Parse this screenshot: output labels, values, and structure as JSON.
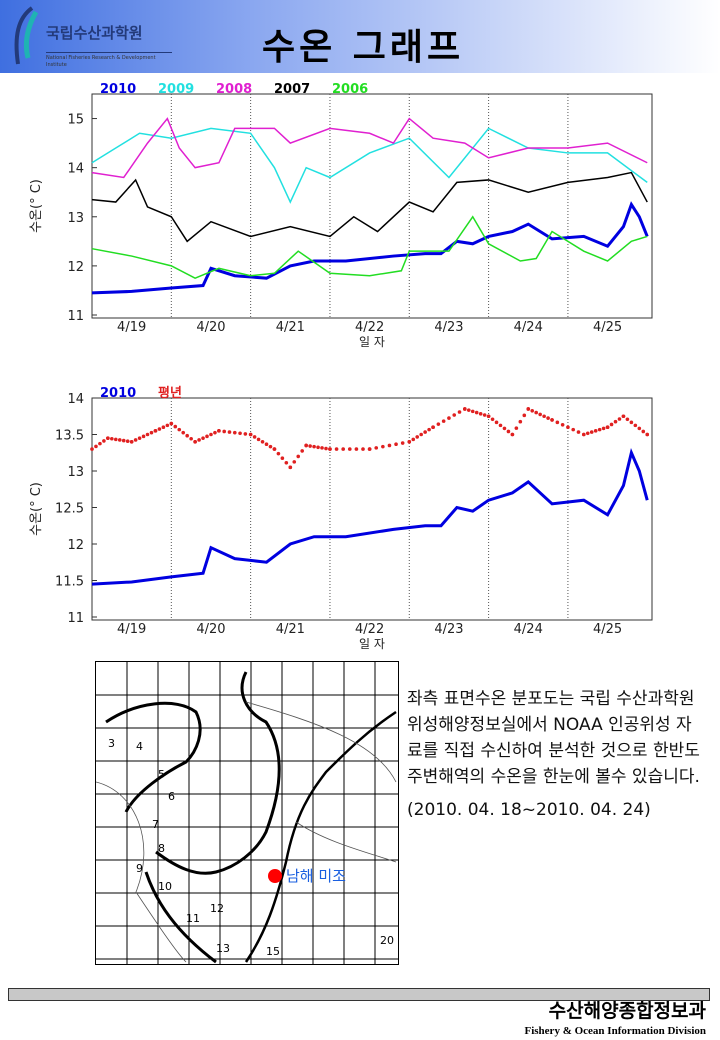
{
  "header": {
    "logo_kr": "국립수산과학원",
    "logo_en": "National Fisheries Research & Development Institute",
    "title": "수온 그래프"
  },
  "chart_data": [
    {
      "type": "line",
      "xlabel": "일 자",
      "ylabel": "수온(° C)",
      "ylim": [
        11,
        15.5
      ],
      "yticks": [
        "11",
        "12",
        "13",
        "14",
        "15"
      ],
      "ytick_values": [
        11,
        12,
        13,
        14,
        15
      ],
      "categories": [
        "4/19",
        "4/20",
        "4/21",
        "4/22",
        "4/23",
        "4/24",
        "4/25"
      ],
      "xlim": [
        0,
        7.06
      ],
      "x_unit": "days since 4/19 00:00",
      "series": [
        {
          "name": "2010",
          "color": "#0000e0",
          "x": [
            0,
            0.5,
            1,
            1.4,
            1.5,
            1.8,
            2.2,
            2.5,
            2.8,
            3.2,
            3.8,
            4.2,
            4.4,
            4.6,
            4.8,
            5,
            5.3,
            5.5,
            5.8,
            6.2,
            6.5,
            6.7,
            6.8,
            6.9,
            7
          ],
          "y": [
            11.45,
            11.48,
            11.55,
            11.6,
            11.95,
            11.8,
            11.75,
            12,
            12.1,
            12.1,
            12.2,
            12.25,
            12.25,
            12.5,
            12.45,
            12.6,
            12.7,
            12.85,
            12.55,
            12.6,
            12.4,
            12.8,
            13.25,
            13,
            12.6
          ]
        },
        {
          "name": "2009",
          "color": "#22e0e0",
          "x": [
            0,
            0.3,
            0.6,
            1,
            1.5,
            2,
            2.3,
            2.5,
            2.7,
            3,
            3.5,
            4,
            4.5,
            5,
            5.5,
            6,
            6.5,
            7
          ],
          "y": [
            14.1,
            14.4,
            14.7,
            14.6,
            14.8,
            14.7,
            14,
            13.3,
            14,
            13.8,
            14.3,
            14.6,
            13.8,
            14.8,
            14.4,
            14.3,
            14.3,
            13.7
          ]
        },
        {
          "name": "2008",
          "color": "#e020d0",
          "x": [
            0,
            0.4,
            0.7,
            0.95,
            1.1,
            1.3,
            1.6,
            1.8,
            2.3,
            2.5,
            3,
            3.5,
            3.8,
            4,
            4.3,
            4.7,
            5,
            5.5,
            6,
            6.5,
            7
          ],
          "y": [
            13.9,
            13.8,
            14.5,
            15,
            14.4,
            14,
            14.1,
            14.8,
            14.8,
            14.5,
            14.8,
            14.7,
            14.5,
            15,
            14.6,
            14.5,
            14.2,
            14.4,
            14.4,
            14.5,
            14.1
          ]
        },
        {
          "name": "2007",
          "color": "#000000",
          "x": [
            0,
            0.3,
            0.55,
            0.7,
            1,
            1.2,
            1.5,
            2,
            2.5,
            3,
            3.3,
            3.6,
            4,
            4.3,
            4.6,
            5,
            5.5,
            6,
            6.5,
            6.8,
            7
          ],
          "y": [
            13.35,
            13.3,
            13.75,
            13.2,
            13,
            12.5,
            12.9,
            12.6,
            12.8,
            12.6,
            13,
            12.7,
            13.3,
            13.1,
            13.7,
            13.75,
            13.5,
            13.7,
            13.8,
            13.9,
            13.3
          ]
        },
        {
          "name": "2006",
          "color": "#22dd22",
          "x": [
            0,
            0.5,
            1,
            1.3,
            1.6,
            2,
            2.3,
            2.6,
            3,
            3.5,
            3.9,
            4,
            4.5,
            4.8,
            5,
            5.4,
            5.6,
            5.8,
            6.2,
            6.5,
            6.8,
            7
          ],
          "y": [
            12.35,
            12.2,
            12,
            11.75,
            11.95,
            11.8,
            11.85,
            12.3,
            11.85,
            11.8,
            11.9,
            12.3,
            12.3,
            13,
            12.45,
            12.1,
            12.15,
            12.7,
            12.3,
            12.1,
            12.5,
            12.6
          ]
        }
      ]
    },
    {
      "type": "line",
      "xlabel": "일 자",
      "ylabel": "수온(° C)",
      "ylim": [
        11,
        14
      ],
      "yticks": [
        "11",
        "11.5",
        "12",
        "12.5",
        "13",
        "13.5",
        "14"
      ],
      "ytick_values": [
        11,
        11.5,
        12,
        12.5,
        13,
        13.5,
        14
      ],
      "categories": [
        "4/19",
        "4/20",
        "4/21",
        "4/22",
        "4/23",
        "4/24",
        "4/25"
      ],
      "xlim": [
        0,
        7.06
      ],
      "x_unit": "days since 4/19 00:00",
      "series": [
        {
          "name": "2010",
          "color": "#0000e0",
          "style": "line",
          "x": [
            0,
            0.5,
            1,
            1.4,
            1.5,
            1.8,
            2.2,
            2.5,
            2.8,
            3.2,
            3.8,
            4.2,
            4.4,
            4.6,
            4.8,
            5,
            5.3,
            5.5,
            5.8,
            6.2,
            6.5,
            6.7,
            6.8,
            6.9,
            7
          ],
          "y": [
            11.45,
            11.48,
            11.55,
            11.6,
            11.95,
            11.8,
            11.75,
            12,
            12.1,
            12.1,
            12.2,
            12.25,
            12.25,
            12.5,
            12.45,
            12.6,
            12.7,
            12.85,
            12.55,
            12.6,
            12.4,
            12.8,
            13.25,
            13,
            12.6
          ]
        },
        {
          "name": "평년",
          "color": "#e02020",
          "style": "dots",
          "x": [
            0,
            0.2,
            0.5,
            0.8,
            1,
            1.3,
            1.6,
            2,
            2.3,
            2.5,
            2.7,
            3,
            3.5,
            4,
            4.3,
            4.7,
            5,
            5.3,
            5.5,
            5.8,
            6.2,
            6.5,
            6.7,
            7
          ],
          "y": [
            13.3,
            13.45,
            13.4,
            13.55,
            13.65,
            13.4,
            13.55,
            13.5,
            13.3,
            13.05,
            13.35,
            13.3,
            13.3,
            13.4,
            13.6,
            13.85,
            13.75,
            13.5,
            13.85,
            13.7,
            13.5,
            13.6,
            13.75,
            13.5
          ]
        }
      ]
    }
  ],
  "map": {
    "site_label": "남해 미조",
    "contour_labels": [
      "3",
      "4",
      "5",
      "6",
      "7",
      "8",
      "9",
      "10",
      "11",
      "12",
      "13",
      "15",
      "20"
    ]
  },
  "description": "좌측 표면수온 분포도는 국립 수산과학원 위성해양정보실에서 NOAA 인공위성 자료를 직접 수신하여 분석한 것으로 한반도 주변해역의 수온을 한눈에 볼수 있습니다.",
  "period": "(2010. 04. 18~2010. 04. 24)",
  "footer": {
    "kr": "수산해양종합정보과",
    "en": "Fishery & Ocean Information Division"
  }
}
